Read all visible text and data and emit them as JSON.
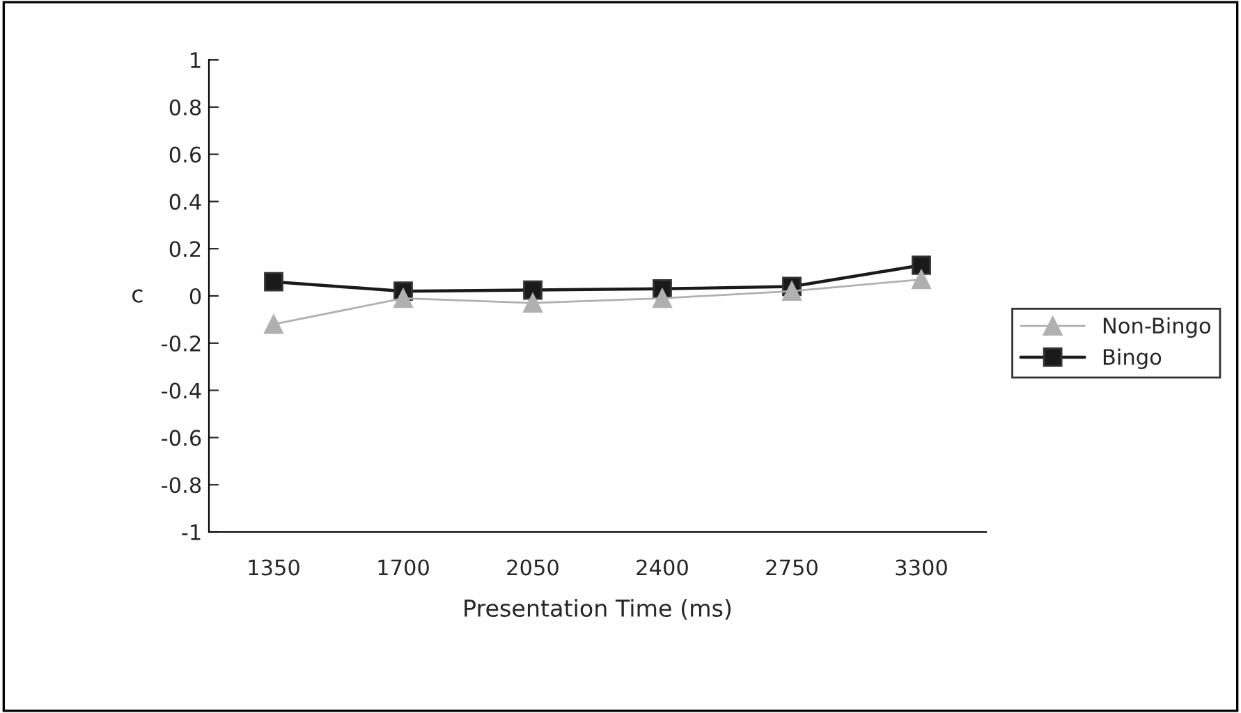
{
  "chart_data": {
    "type": "line",
    "xlabel": "Presentation Time (ms)",
    "ylabel": "c",
    "categories": [
      "1350",
      "1700",
      "2050",
      "2400",
      "2750",
      "3300"
    ],
    "series": [
      {
        "name": "Non-Bingo",
        "color": "#b0b0b0",
        "marker": "triangle",
        "values": [
          -0.12,
          -0.01,
          -0.03,
          -0.01,
          0.02,
          0.07
        ]
      },
      {
        "name": "Bingo",
        "color": "#1a1a1a",
        "marker": "square",
        "values": [
          0.06,
          0.02,
          0.025,
          0.03,
          0.04,
          0.13
        ]
      }
    ],
    "ylim": [
      -1,
      1
    ],
    "yticks": [
      -1,
      {
        "value": -0.8,
        "label": "-0.8"
      },
      {
        "value": -0.6,
        "label": "-0.6"
      },
      {
        "value": -0.4,
        "label": "-0.4"
      },
      {
        "value": -0.2,
        "label": "-0.2"
      },
      0,
      {
        "value": 0.2,
        "label": "0.2"
      },
      {
        "value": 0.4,
        "label": "0.4"
      },
      {
        "value": 0.6,
        "label": "0.6"
      },
      {
        "value": 0.8,
        "label": "0.8"
      },
      1
    ],
    "grid": false,
    "legend": "right"
  }
}
